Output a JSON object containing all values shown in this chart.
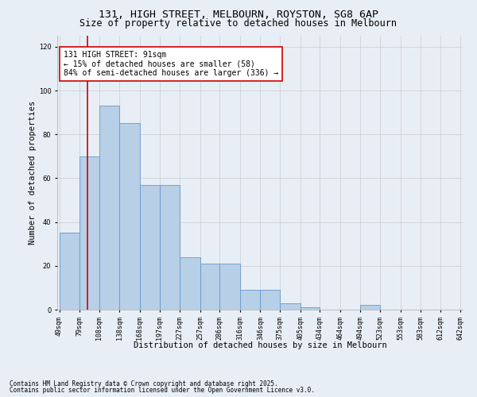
{
  "title_line1": "131, HIGH STREET, MELBOURN, ROYSTON, SG8 6AP",
  "title_line2": "Size of property relative to detached houses in Melbourn",
  "xlabel": "Distribution of detached houses by size in Melbourn",
  "ylabel": "Number of detached properties",
  "bar_edges": [
    49,
    79,
    108,
    138,
    168,
    197,
    227,
    257,
    286,
    316,
    346,
    375,
    405,
    434,
    464,
    494,
    523,
    553,
    583,
    612,
    642
  ],
  "bar_heights": [
    35,
    70,
    93,
    85,
    57,
    57,
    24,
    21,
    21,
    9,
    9,
    3,
    1,
    0,
    0,
    2,
    0,
    0,
    0,
    0
  ],
  "bar_color": "#b8cfe8",
  "bar_edge_color": "#6699cc",
  "property_size": 91,
  "red_line_color": "#cc0000",
  "annotation_text": "131 HIGH STREET: 91sqm\n← 15% of detached houses are smaller (58)\n84% of semi-detached houses are larger (336) →",
  "annotation_box_color": "#ffffff",
  "annotation_box_edge_color": "#cc0000",
  "ylim": [
    0,
    125
  ],
  "yticks": [
    0,
    20,
    40,
    60,
    80,
    100,
    120
  ],
  "grid_color": "#cccccc",
  "bg_color": "#e8eef5",
  "footnote_line1": "Contains HM Land Registry data © Crown copyright and database right 2025.",
  "footnote_line2": "Contains public sector information licensed under the Open Government Licence v3.0.",
  "title_fontsize": 9.5,
  "subtitle_fontsize": 8.5,
  "tick_fontsize": 6.0,
  "label_fontsize": 7.5,
  "annotation_fontsize": 7.0,
  "footnote_fontsize": 5.5
}
